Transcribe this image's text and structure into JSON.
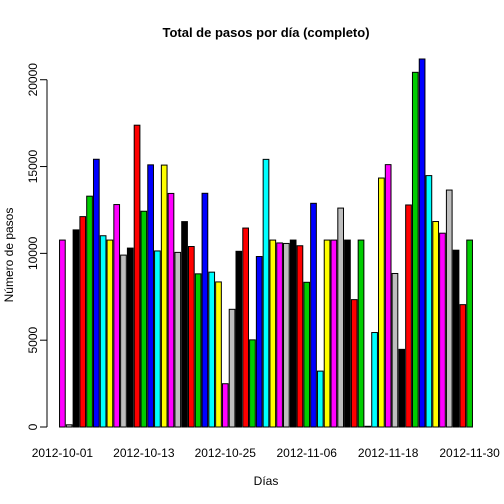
{
  "chart_data": {
    "type": "bar",
    "title": "Total de pasos por día (completo)",
    "xlabel": "Días",
    "ylabel": "Número de pasos",
    "ylim": [
      0,
      21194
    ],
    "yticks": [
      0,
      5000,
      10000,
      15000,
      20000
    ],
    "ytick_labels": [
      "0",
      "5000",
      "10000",
      "15000",
      "20000"
    ],
    "xtick_labels": [
      "2012-10-01",
      "2012-10-13",
      "2012-10-25",
      "2012-11-06",
      "2012-11-18",
      "2012-11-30"
    ],
    "xtick_indices": [
      0,
      12,
      24,
      36,
      48,
      60
    ],
    "palette": [
      "#FF00FF",
      "#BEBEBE",
      "#000000",
      "#FF0000",
      "#00CD00",
      "#0000FF",
      "#00FFFF",
      "#FFFF00"
    ],
    "categories": [
      "2012-10-01",
      "2012-10-02",
      "2012-10-03",
      "2012-10-04",
      "2012-10-05",
      "2012-10-06",
      "2012-10-07",
      "2012-10-08",
      "2012-10-09",
      "2012-10-10",
      "2012-10-11",
      "2012-10-12",
      "2012-10-13",
      "2012-10-14",
      "2012-10-15",
      "2012-10-16",
      "2012-10-17",
      "2012-10-18",
      "2012-10-19",
      "2012-10-20",
      "2012-10-21",
      "2012-10-22",
      "2012-10-23",
      "2012-10-24",
      "2012-10-25",
      "2012-10-26",
      "2012-10-27",
      "2012-10-28",
      "2012-10-29",
      "2012-10-30",
      "2012-10-31",
      "2012-11-01",
      "2012-11-02",
      "2012-11-03",
      "2012-11-04",
      "2012-11-05",
      "2012-11-06",
      "2012-11-07",
      "2012-11-08",
      "2012-11-09",
      "2012-11-10",
      "2012-11-11",
      "2012-11-12",
      "2012-11-13",
      "2012-11-14",
      "2012-11-15",
      "2012-11-16",
      "2012-11-17",
      "2012-11-18",
      "2012-11-19",
      "2012-11-20",
      "2012-11-21",
      "2012-11-22",
      "2012-11-23",
      "2012-11-24",
      "2012-11-25",
      "2012-11-26",
      "2012-11-27",
      "2012-11-28",
      "2012-11-29",
      "2012-11-30"
    ],
    "values": [
      10766,
      126,
      11352,
      12116,
      13294,
      15420,
      11015,
      10766,
      12811,
      9900,
      10304,
      17382,
      12426,
      15098,
      10139,
      15084,
      13452,
      10056,
      11829,
      10395,
      8821,
      13460,
      8918,
      8355,
      2492,
      6778,
      10119,
      11458,
      5018,
      9819,
      15414,
      10766,
      10600,
      10571,
      10766,
      10439,
      8334,
      12883,
      3219,
      10766,
      10766,
      12608,
      10765,
      7336,
      10766,
      41,
      5441,
      14339,
      15110,
      8841,
      4472,
      12787,
      20427,
      21194,
      14478,
      11834,
      11162,
      13646,
      10183,
      7047,
      10766
    ]
  }
}
